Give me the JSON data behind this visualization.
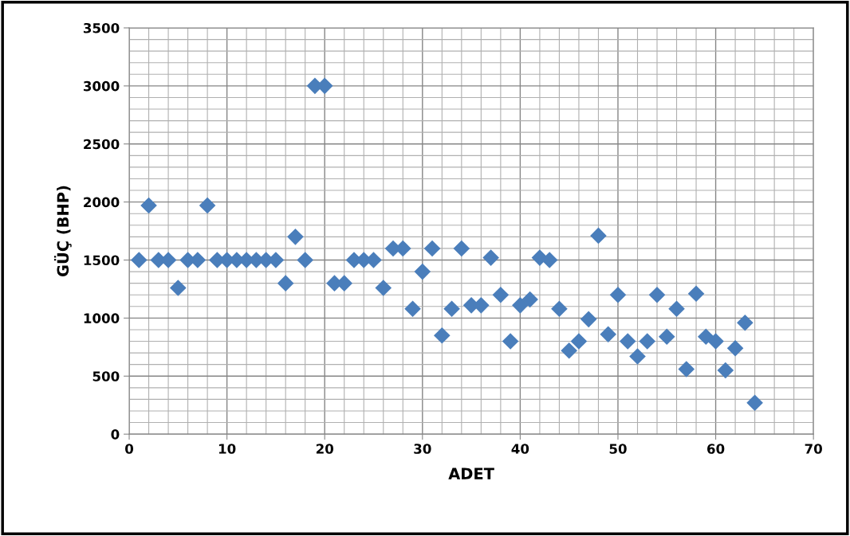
{
  "chart_data": {
    "type": "scatter",
    "xlabel": "ADET",
    "ylabel": "GÜÇ (BHP)",
    "x": [
      1,
      2,
      3,
      4,
      5,
      6,
      7,
      8,
      9,
      10,
      11,
      12,
      13,
      14,
      15,
      16,
      17,
      18,
      19,
      20,
      21,
      22,
      23,
      24,
      25,
      26,
      27,
      28,
      29,
      30,
      31,
      32,
      33,
      34,
      35,
      36,
      37,
      38,
      39,
      40,
      41,
      42,
      43,
      44,
      45,
      46,
      47,
      48,
      49,
      50,
      51,
      52,
      53,
      54,
      55,
      56,
      57,
      58,
      59,
      60,
      61,
      62,
      63,
      64
    ],
    "series": [
      {
        "color": "#4a7ebb",
        "values": [
          1500,
          1970,
          1500,
          1500,
          1260,
          1500,
          1500,
          1970,
          1500,
          1500,
          1500,
          1500,
          1500,
          1500,
          1500,
          1300,
          1700,
          1500,
          3000,
          3000,
          1300,
          1300,
          1500,
          1500,
          1500,
          1260,
          1600,
          1600,
          1080,
          1400,
          1600,
          850,
          1080,
          1600,
          1110,
          1110,
          1520,
          1200,
          800,
          1110,
          1160,
          1520,
          1500,
          1080,
          720,
          800,
          990,
          1710,
          860,
          1200,
          800,
          670,
          800,
          1200,
          840,
          1080,
          560,
          1210,
          840,
          800,
          550,
          740,
          960,
          270
        ]
      }
    ],
    "marker": "diamond",
    "grid": true,
    "legend": false,
    "xlim": [
      0,
      70
    ],
    "xticks": [
      0,
      10,
      20,
      30,
      40,
      50,
      60,
      70
    ],
    "ylim": [
      0,
      3500
    ],
    "yticks": [
      0,
      500,
      1000,
      1500,
      2000,
      2500,
      3000,
      3500
    ]
  }
}
